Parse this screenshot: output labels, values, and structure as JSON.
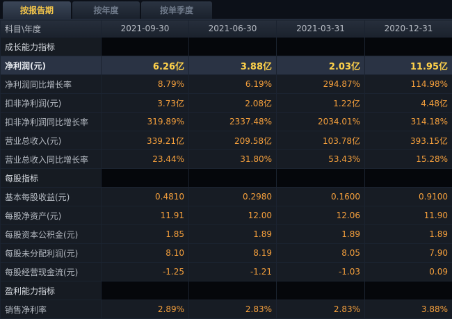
{
  "tabs": [
    {
      "label": "按报告期",
      "active": true
    },
    {
      "label": "按年度",
      "active": false
    },
    {
      "label": "按单季度",
      "active": false
    }
  ],
  "table": {
    "header": {
      "subject_label": "科目\\年度",
      "periods": [
        "2021-09-30",
        "2021-06-30",
        "2021-03-31",
        "2020-12-31"
      ]
    },
    "sections": {
      "growth": "成长能力指标",
      "per_share": "每股指标",
      "profitability": "盈利能力指标"
    },
    "rows": {
      "net_profit": {
        "label": "净利润(元)",
        "values": [
          "6.26亿",
          "3.88亿",
          "2.03亿",
          "11.95亿"
        ]
      },
      "net_profit_yoy": {
        "label": "净利润同比增长率",
        "values": [
          "8.79%",
          "6.19%",
          "294.87%",
          "114.98%"
        ]
      },
      "deducted_net_profit": {
        "label": "扣非净利润(元)",
        "values": [
          "3.73亿",
          "2.08亿",
          "1.22亿",
          "4.48亿"
        ]
      },
      "deducted_net_profit_yoy": {
        "label": "扣非净利润同比增长率",
        "values": [
          "319.89%",
          "2337.48%",
          "2034.01%",
          "314.18%"
        ]
      },
      "revenue": {
        "label": "营业总收入(元)",
        "values": [
          "339.21亿",
          "209.58亿",
          "103.78亿",
          "393.15亿"
        ]
      },
      "revenue_yoy": {
        "label": "营业总收入同比增长率",
        "values": [
          "23.44%",
          "31.80%",
          "53.43%",
          "15.28%"
        ]
      },
      "eps": {
        "label": "基本每股收益(元)",
        "values": [
          "0.4810",
          "0.2980",
          "0.1600",
          "0.9100"
        ]
      },
      "bvps": {
        "label": "每股净资产(元)",
        "values": [
          "11.91",
          "12.00",
          "12.06",
          "11.90"
        ]
      },
      "capital_reserve_ps": {
        "label": "每股资本公积金(元)",
        "values": [
          "1.85",
          "1.89",
          "1.89",
          "1.89"
        ]
      },
      "undistributed_profit_ps": {
        "label": "每股未分配利润(元)",
        "values": [
          "8.10",
          "8.19",
          "8.05",
          "7.90"
        ]
      },
      "operating_cashflow_ps": {
        "label": "每股经营现金流(元)",
        "values": [
          "-1.25",
          "-1.21",
          "-1.03",
          "0.09"
        ]
      },
      "net_margin": {
        "label": "销售净利率",
        "values": [
          "2.89%",
          "2.83%",
          "2.83%",
          "3.88%"
        ]
      }
    }
  },
  "colors": {
    "value_orange": "#f6a03c",
    "highlight_yellow": "#ffd24a",
    "active_tab": "#f3c54a",
    "background": "#0c1018"
  }
}
